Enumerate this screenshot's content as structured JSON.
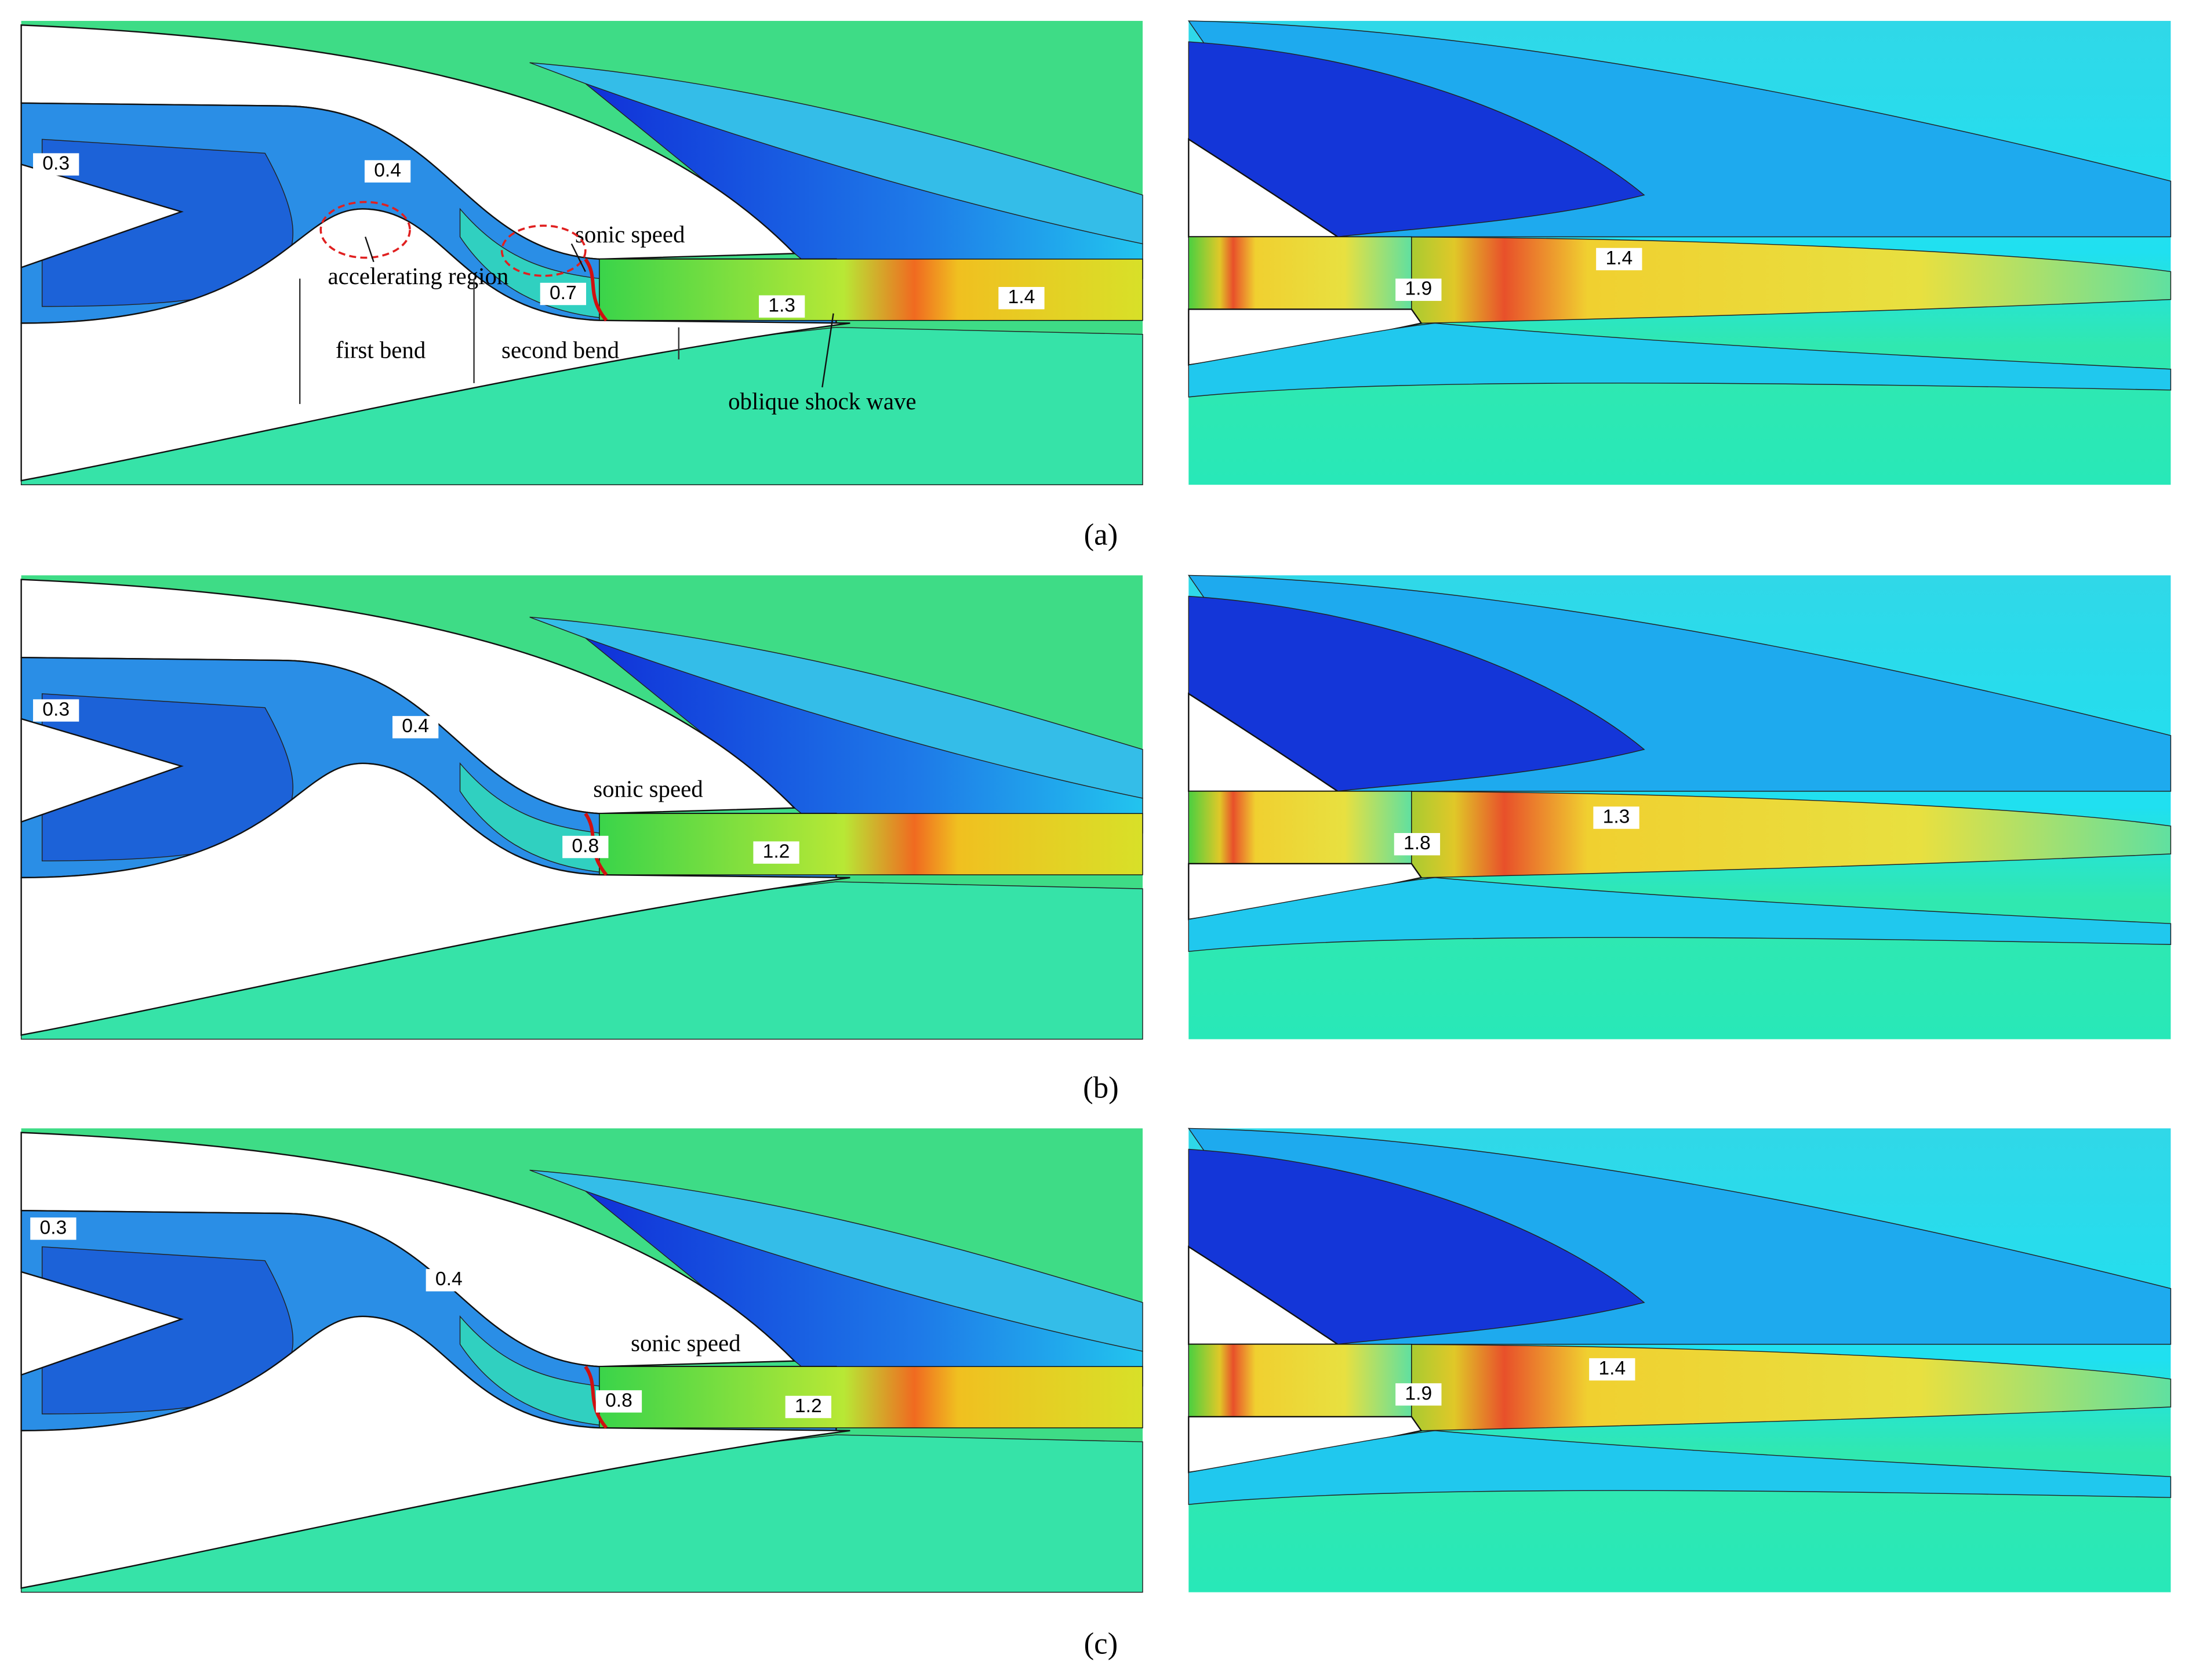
{
  "panels": [
    {
      "caption": "(a)",
      "left_labels": [
        0.3,
        0.4,
        0.7,
        1.3,
        1.4
      ],
      "right_labels": [
        1.9,
        1.4
      ],
      "annotations": [
        "accelerating region",
        "sonic speed",
        "first bend",
        "second bend",
        "oblique shock wave"
      ]
    },
    {
      "caption": "(b)",
      "left_labels": [
        0.3,
        0.4,
        0.8,
        1.2
      ],
      "right_labels": [
        1.8,
        1.3
      ],
      "annotations": [
        "sonic speed"
      ]
    },
    {
      "caption": "(c)",
      "left_labels": [
        0.3,
        0.4,
        0.8,
        1.2
      ],
      "right_labels": [
        1.9,
        1.4
      ],
      "annotations": [
        "sonic speed"
      ]
    }
  ]
}
